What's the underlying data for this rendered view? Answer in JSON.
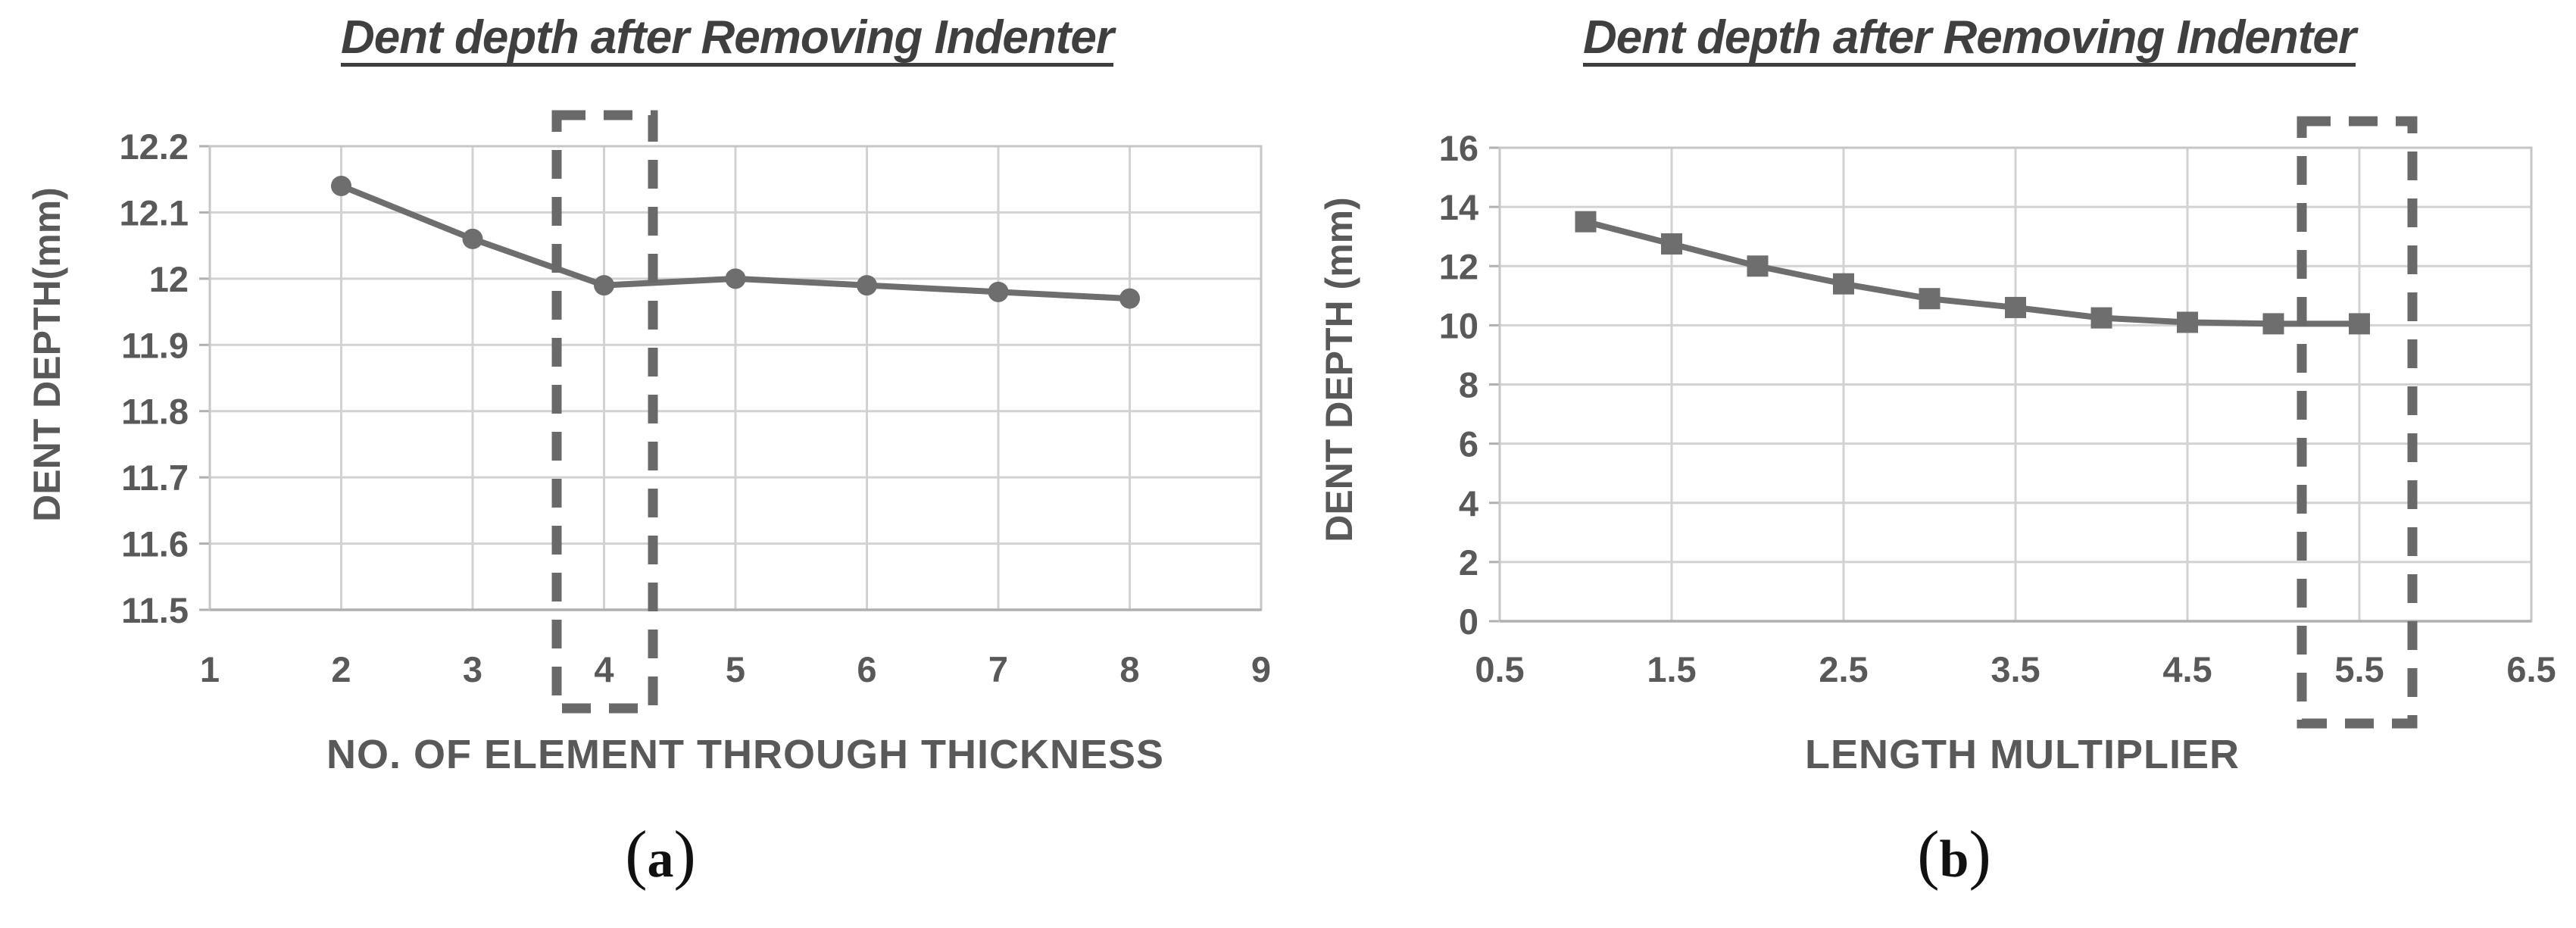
{
  "colors": {
    "series": "#6e6e6e",
    "marker": "#6e6e6e",
    "gridline": "#d2d2d2",
    "plot_border": "#c6c6c6",
    "axis_line": "#b0b0b0",
    "tick_stub": "#b0b0b0",
    "highlight_box": "#696969",
    "tick_text": "#595959",
    "title_text": "#3f3f3f"
  },
  "chart_data": [
    {
      "type": "line",
      "title": "Dent depth after Removing Indenter",
      "xlabel": "NO. OF ELEMENT THROUGH THICKNESS",
      "ylabel": "DENT DEPTH(mm)",
      "marker": "circle",
      "grid": true,
      "legend": "none",
      "x": [
        2,
        3,
        4,
        5,
        6,
        7,
        8
      ],
      "y": [
        12.14,
        12.06,
        11.99,
        12.0,
        11.99,
        11.98,
        11.97
      ],
      "xlim": [
        1,
        9
      ],
      "ylim": [
        11.5,
        12.2
      ],
      "xticks": [
        1,
        2,
        3,
        4,
        5,
        6,
        7,
        8,
        9
      ],
      "xtick_labels": [
        "1",
        "2",
        "3",
        "4",
        "5",
        "6",
        "7",
        "8",
        "9"
      ],
      "yticks": [
        11.5,
        11.6,
        11.7,
        11.8,
        11.9,
        12,
        12.1,
        12.2
      ],
      "ytick_labels": [
        "11.5",
        "11.6",
        "11.7",
        "11.8",
        "11.9",
        "12",
        "12.1",
        "12.2"
      ],
      "annotation_box": {
        "shape": "dashed-rectangle",
        "around_x": 4
      },
      "caption": {
        "open": "(",
        "letter": "a",
        "close": ")"
      }
    },
    {
      "type": "line",
      "title": "Dent depth after Removing Indenter",
      "xlabel": "LENGTH MULTIPLIER",
      "ylabel": "DENT DEPTH (mm)",
      "marker": "square",
      "grid": true,
      "legend": "none",
      "x": [
        1,
        1.5,
        2,
        2.5,
        3,
        3.5,
        4,
        4.5,
        5,
        5.5
      ],
      "y": [
        13.5,
        12.75,
        12.0,
        11.4,
        10.9,
        10.6,
        10.25,
        10.1,
        10.05,
        10.05
      ],
      "xlim": [
        0.5,
        6.5
      ],
      "ylim": [
        0,
        16
      ],
      "xticks": [
        0.5,
        1.5,
        2.5,
        3.5,
        4.5,
        5.5,
        6.5
      ],
      "xtick_labels": [
        "0.5",
        "1.5",
        "2.5",
        "3.5",
        "4.5",
        "5.5",
        "6.5"
      ],
      "yticks": [
        0,
        2,
        4,
        6,
        8,
        10,
        12,
        14,
        16
      ],
      "ytick_labels": [
        "0",
        "2",
        "4",
        "6",
        "8",
        "10",
        "12",
        "14",
        "16"
      ],
      "annotation_box": {
        "shape": "dashed-rectangle",
        "around_x": 5.5
      },
      "caption": {
        "open": "(",
        "letter": "b",
        "close": ")"
      }
    }
  ]
}
